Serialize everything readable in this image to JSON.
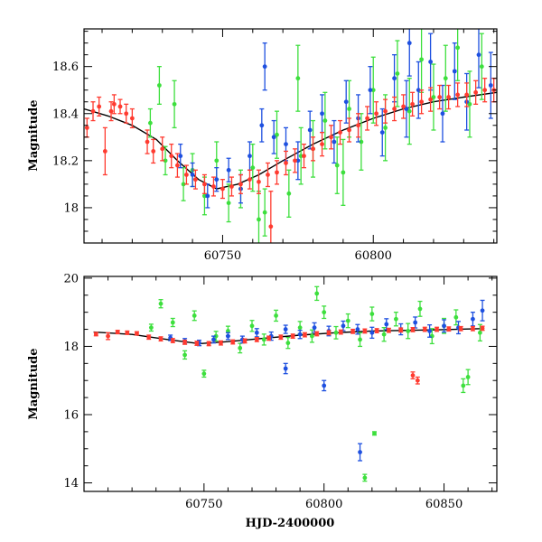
{
  "figure": {
    "colors": {
      "red": "#ff3b30",
      "green": "#3ddf3d",
      "blue": "#1e50e0",
      "model": "#000000"
    }
  },
  "chart_data": [
    {
      "type": "scatter",
      "panel": "top",
      "xlabel": "",
      "ylabel": "Magnitude",
      "xlim": [
        60704,
        60841
      ],
      "ylim": [
        18.76,
        17.85
      ],
      "y_inverted": true,
      "x_ticks": [
        60750,
        60800
      ],
      "x_tick_labels": [
        "60750",
        "60800"
      ],
      "y_ticks": [
        18.0,
        18.2,
        18.4,
        18.6
      ],
      "y_tick_labels": [
        "18",
        "18.2",
        "18.4",
        "18.6"
      ],
      "model_curve": {
        "x": [
          60704,
          60712,
          60720,
          60728,
          60735,
          60742,
          60748,
          60755,
          60762,
          60770,
          60780,
          60790,
          60800,
          60810,
          60820,
          60830,
          60841
        ],
        "y": [
          18.42,
          18.39,
          18.35,
          18.29,
          18.2,
          18.12,
          18.08,
          18.1,
          18.14,
          18.2,
          18.27,
          18.33,
          18.38,
          18.42,
          18.45,
          18.47,
          18.49
        ]
      },
      "series": [
        {
          "color": "red",
          "x": [
            60705,
            60707,
            60709,
            60711,
            60713,
            60714,
            60716,
            60718,
            60720,
            60725,
            60727,
            60730,
            60733,
            60735,
            60738,
            60741,
            60744,
            60747,
            60750,
            60753,
            60756,
            60759,
            60762,
            60765,
            60768,
            60771,
            60774,
            60777,
            60780,
            60783,
            60786,
            60789,
            60792,
            60795,
            60798,
            60801,
            60804,
            60807,
            60810,
            60813,
            60816,
            60819,
            60822,
            60825,
            60828,
            60831,
            60834,
            60837,
            60840,
            60766
          ],
          "y": [
            18.34,
            18.41,
            18.43,
            18.24,
            18.41,
            18.44,
            18.43,
            18.4,
            18.38,
            18.28,
            18.24,
            18.25,
            18.22,
            18.18,
            18.14,
            18.12,
            18.1,
            18.09,
            18.08,
            18.09,
            18.1,
            18.12,
            18.11,
            18.14,
            18.15,
            18.19,
            18.2,
            18.22,
            18.25,
            18.27,
            18.3,
            18.32,
            18.33,
            18.35,
            18.38,
            18.4,
            18.41,
            18.42,
            18.43,
            18.44,
            18.45,
            18.46,
            18.47,
            18.47,
            18.48,
            18.48,
            18.49,
            18.5,
            18.5,
            17.92
          ],
          "err": [
            0.04,
            0.04,
            0.04,
            0.1,
            0.04,
            0.04,
            0.03,
            0.04,
            0.04,
            0.05,
            0.05,
            0.05,
            0.05,
            0.05,
            0.04,
            0.04,
            0.04,
            0.04,
            0.04,
            0.04,
            0.04,
            0.04,
            0.05,
            0.05,
            0.05,
            0.05,
            0.05,
            0.05,
            0.05,
            0.05,
            0.05,
            0.05,
            0.05,
            0.05,
            0.05,
            0.05,
            0.05,
            0.05,
            0.05,
            0.05,
            0.05,
            0.05,
            0.05,
            0.05,
            0.05,
            0.05,
            0.05,
            0.05,
            0.05,
            0.15
          ]
        },
        {
          "color": "green",
          "x": [
            60726,
            60729,
            60731,
            60734,
            60737,
            60740,
            60744,
            60748,
            60752,
            60756,
            60760,
            60764,
            60768,
            60772,
            60776,
            60780,
            60784,
            60788,
            60792,
            60796,
            60800,
            60804,
            60808,
            60812,
            60816,
            60820,
            60824,
            60828,
            60832,
            60836,
            60762,
            60775,
            60790
          ],
          "y": [
            18.36,
            18.52,
            18.2,
            18.44,
            18.1,
            18.16,
            18.05,
            18.2,
            18.02,
            18.08,
            18.17,
            17.98,
            18.31,
            18.06,
            18.22,
            18.25,
            18.37,
            18.18,
            18.42,
            18.28,
            18.5,
            18.34,
            18.57,
            18.41,
            18.63,
            18.47,
            18.55,
            18.68,
            18.44,
            18.6,
            17.95,
            18.55,
            18.15
          ],
          "err": [
            0.06,
            0.08,
            0.06,
            0.1,
            0.07,
            0.07,
            0.08,
            0.08,
            0.08,
            0.08,
            0.1,
            0.1,
            0.1,
            0.1,
            0.12,
            0.12,
            0.12,
            0.12,
            0.12,
            0.12,
            0.14,
            0.14,
            0.14,
            0.14,
            0.14,
            0.14,
            0.14,
            0.14,
            0.14,
            0.14,
            0.12,
            0.14,
            0.14
          ]
        },
        {
          "color": "blue",
          "x": [
            60736,
            60740,
            60745,
            60748,
            60752,
            60756,
            60759,
            60763,
            60767,
            60771,
            60775,
            60779,
            60783,
            60787,
            60791,
            60795,
            60799,
            60803,
            60807,
            60811,
            60815,
            60819,
            60823,
            60827,
            60831,
            60835,
            60839,
            60764,
            60812
          ],
          "y": [
            18.22,
            18.14,
            18.05,
            18.12,
            18.16,
            18.08,
            18.22,
            18.35,
            18.3,
            18.27,
            18.2,
            18.33,
            18.4,
            18.28,
            18.45,
            18.38,
            18.5,
            18.32,
            18.55,
            18.42,
            18.5,
            18.62,
            18.4,
            18.58,
            18.45,
            18.65,
            18.52,
            18.6,
            18.7
          ],
          "err": [
            0.05,
            0.05,
            0.05,
            0.05,
            0.05,
            0.06,
            0.06,
            0.07,
            0.07,
            0.07,
            0.08,
            0.08,
            0.08,
            0.09,
            0.09,
            0.1,
            0.1,
            0.1,
            0.1,
            0.12,
            0.12,
            0.12,
            0.12,
            0.12,
            0.12,
            0.14,
            0.14,
            0.1,
            0.14
          ]
        }
      ]
    },
    {
      "type": "scatter",
      "panel": "bottom",
      "xlabel": "HJD-2400000",
      "ylabel": "Magnitude",
      "xlim": [
        60700,
        60872
      ],
      "ylim": [
        20.05,
        13.75
      ],
      "y_inverted": true,
      "x_ticks": [
        60750,
        60800,
        60850
      ],
      "x_tick_labels": [
        "60750",
        "60800",
        "60850"
      ],
      "y_ticks": [
        14,
        16,
        18,
        20
      ],
      "y_tick_labels": [
        "14",
        "16",
        "18",
        "20"
      ],
      "model_curve": {
        "x": [
          60704,
          60720,
          60735,
          60748,
          60760,
          60775,
          60790,
          60805,
          60820,
          60835,
          60850,
          60866
        ],
        "y": [
          18.42,
          18.35,
          18.2,
          18.08,
          18.14,
          18.24,
          18.33,
          18.4,
          18.45,
          18.47,
          18.49,
          18.52
        ]
      },
      "series": [
        {
          "color": "red",
          "x": [
            60705,
            60710,
            60714,
            60718,
            60722,
            60727,
            60732,
            60737,
            60742,
            60747,
            60752,
            60757,
            60762,
            60767,
            60772,
            60777,
            60782,
            60787,
            60792,
            60797,
            60802,
            60807,
            60812,
            60817,
            60822,
            60827,
            60832,
            60837,
            60842,
            60847,
            60852,
            60857,
            60862,
            60866,
            60837,
            60839
          ],
          "y": [
            18.36,
            18.3,
            18.42,
            18.4,
            18.38,
            18.27,
            18.22,
            18.17,
            18.12,
            18.09,
            18.08,
            18.1,
            18.13,
            18.16,
            18.2,
            18.24,
            18.27,
            18.3,
            18.34,
            18.37,
            18.4,
            18.42,
            18.44,
            18.45,
            18.46,
            18.47,
            18.48,
            18.49,
            18.5,
            18.5,
            18.51,
            18.52,
            18.52,
            18.53,
            17.15,
            17.0
          ],
          "err": [
            0.05,
            0.1,
            0.05,
            0.05,
            0.05,
            0.06,
            0.06,
            0.06,
            0.06,
            0.06,
            0.06,
            0.06,
            0.06,
            0.06,
            0.06,
            0.06,
            0.06,
            0.06,
            0.06,
            0.06,
            0.06,
            0.06,
            0.06,
            0.06,
            0.06,
            0.06,
            0.06,
            0.06,
            0.06,
            0.06,
            0.06,
            0.06,
            0.06,
            0.06,
            0.1,
            0.1
          ]
        },
        {
          "color": "green",
          "x": [
            60728,
            60732,
            60737,
            60742,
            60746,
            60750,
            60755,
            60760,
            60765,
            60770,
            60775,
            60780,
            60785,
            60790,
            60795,
            60800,
            60805,
            60810,
            60815,
            60820,
            60825,
            60830,
            60835,
            60840,
            60845,
            60850,
            60855,
            60860,
            60865,
            60817,
            60821,
            60797,
            60858
          ],
          "y": [
            18.55,
            19.25,
            18.7,
            17.75,
            18.9,
            17.2,
            18.3,
            18.45,
            17.95,
            18.6,
            18.2,
            18.9,
            18.1,
            18.55,
            18.3,
            19.0,
            18.4,
            18.75,
            18.2,
            18.95,
            18.35,
            18.8,
            18.45,
            19.1,
            18.3,
            18.6,
            18.85,
            17.1,
            18.4,
            14.15,
            15.45,
            19.55,
            16.85
          ],
          "err": [
            0.1,
            0.12,
            0.12,
            0.12,
            0.14,
            0.1,
            0.14,
            0.14,
            0.14,
            0.16,
            0.16,
            0.16,
            0.16,
            0.18,
            0.18,
            0.18,
            0.18,
            0.2,
            0.2,
            0.2,
            0.2,
            0.2,
            0.22,
            0.22,
            0.22,
            0.22,
            0.22,
            0.22,
            0.24,
            0.1,
            0.05,
            0.2,
            0.2
          ]
        },
        {
          "color": "blue",
          "x": [
            60736,
            60742,
            60748,
            60754,
            60760,
            60766,
            60772,
            60778,
            60784,
            60790,
            60796,
            60802,
            60808,
            60814,
            60820,
            60826,
            60832,
            60838,
            60844,
            60850,
            60856,
            60862,
            60866,
            60815,
            60800,
            60784
          ],
          "y": [
            18.25,
            18.15,
            18.1,
            18.2,
            18.3,
            18.2,
            18.4,
            18.3,
            18.5,
            18.35,
            18.55,
            18.45,
            18.6,
            18.5,
            18.4,
            18.65,
            18.5,
            18.7,
            18.45,
            18.6,
            18.55,
            18.8,
            19.05,
            14.9,
            16.85,
            17.35
          ],
          "err": [
            0.08,
            0.08,
            0.08,
            0.1,
            0.1,
            0.1,
            0.12,
            0.12,
            0.12,
            0.12,
            0.14,
            0.14,
            0.14,
            0.14,
            0.16,
            0.16,
            0.16,
            0.16,
            0.18,
            0.18,
            0.18,
            0.2,
            0.3,
            0.25,
            0.15,
            0.15
          ]
        }
      ]
    }
  ]
}
